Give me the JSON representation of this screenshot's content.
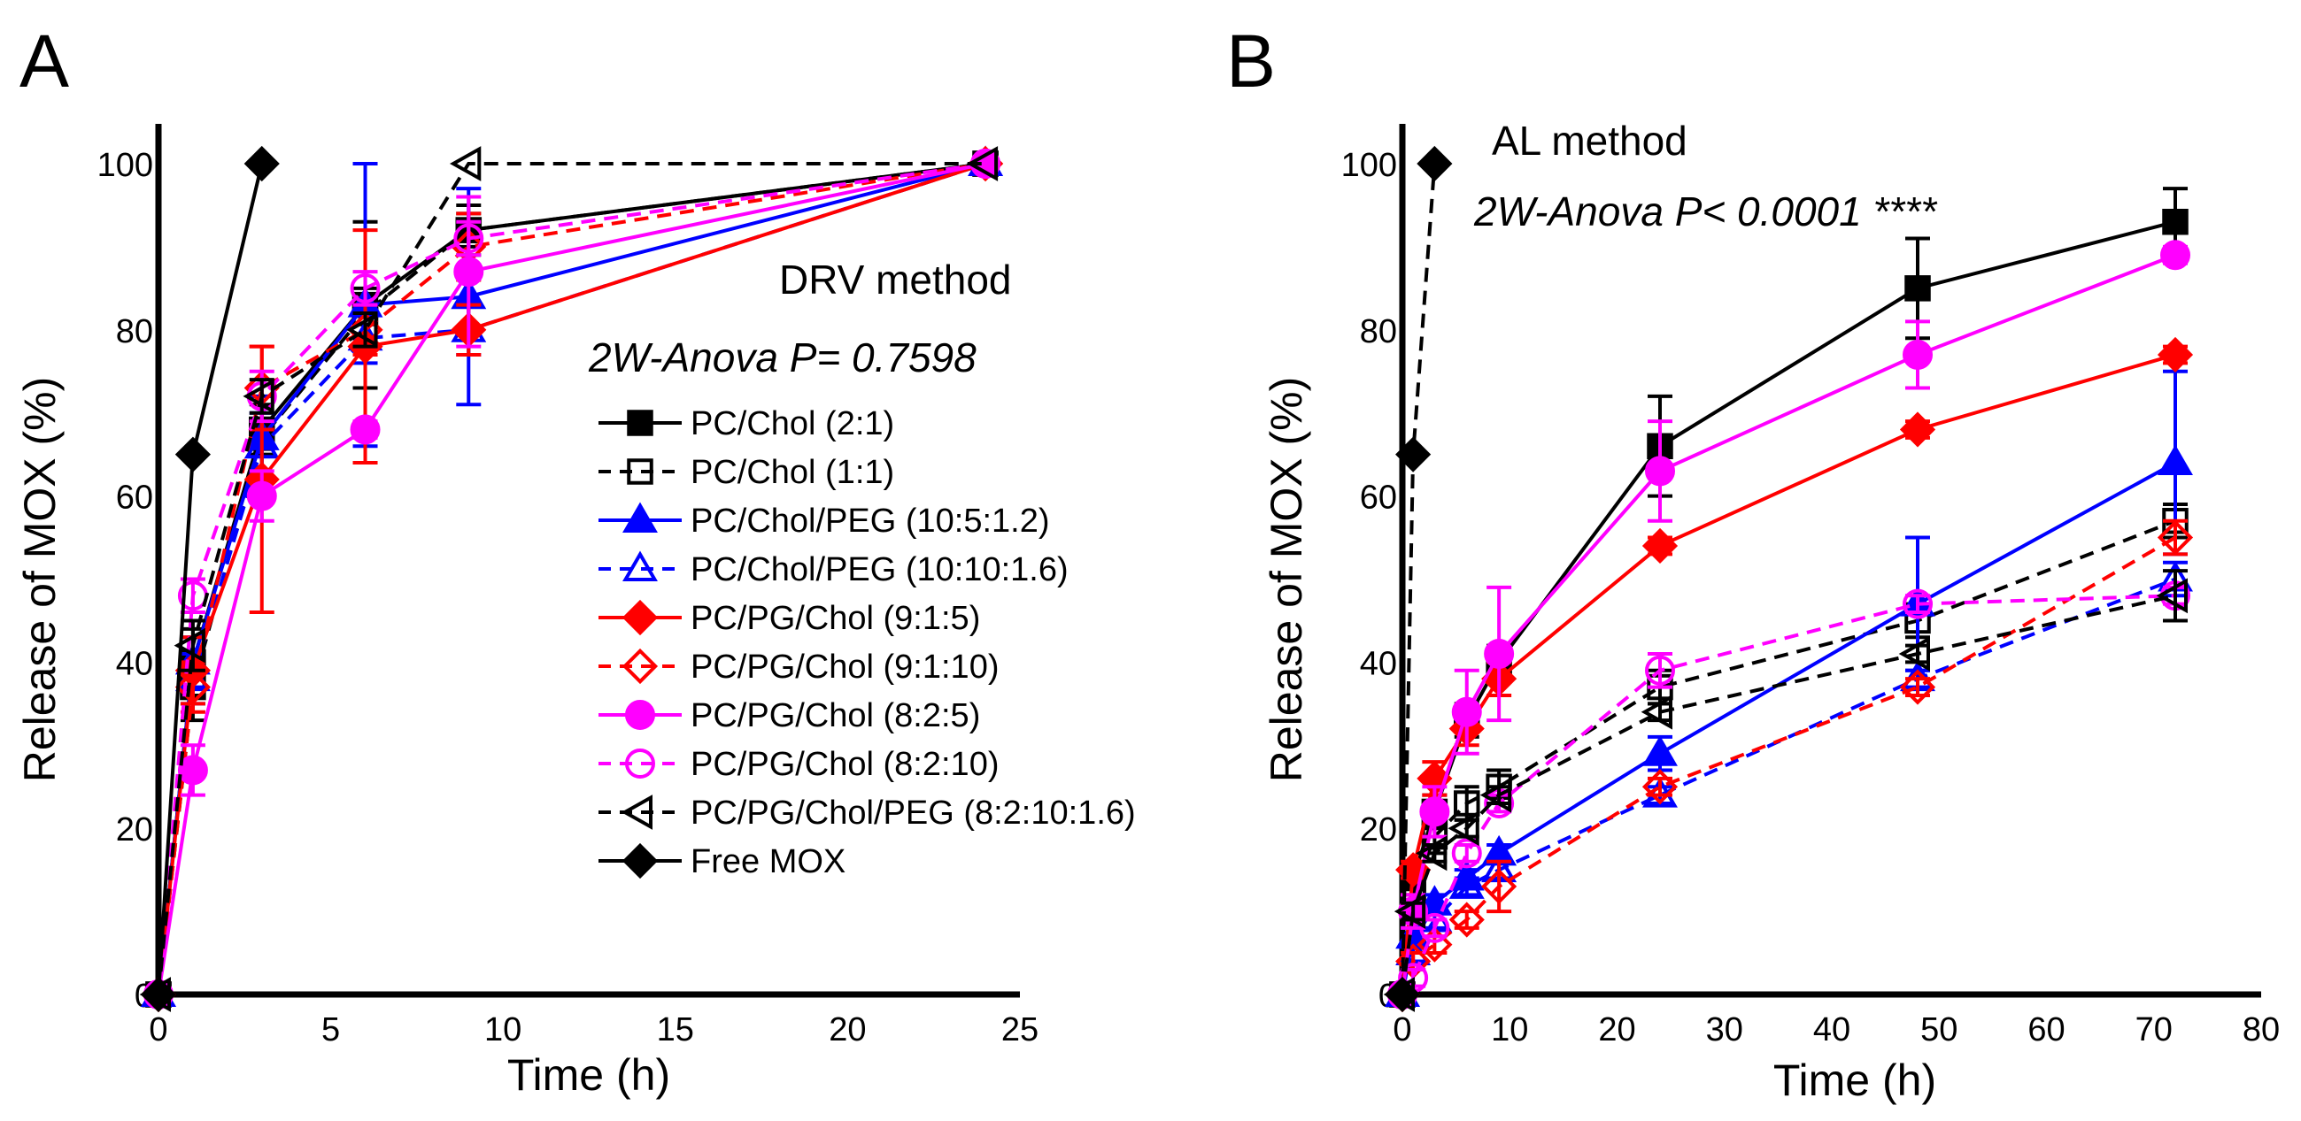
{
  "colors": {
    "black": "#000000",
    "blue": "#0000ff",
    "red": "#ff0000",
    "magenta": "#ff00ff"
  },
  "chart_data": [
    {
      "type": "line",
      "panel_label": "A",
      "title": "",
      "xlabel": "Time (h)",
      "ylabel": "Release of MOX (%)",
      "xlim": [
        0,
        25
      ],
      "ylim": [
        0,
        100
      ],
      "xticks": [
        0,
        5,
        10,
        15,
        20,
        25
      ],
      "yticks": [
        0,
        20,
        40,
        60,
        80,
        100
      ],
      "annotations": [
        "DRV method",
        "2W-Anova P= 0.7598"
      ],
      "legend_position": "center-right",
      "legend": [
        "PC/Chol (2:1)",
        "PC/Chol (1:1)",
        "PC/Chol/PEG (10:5:1.2)",
        "PC/Chol/PEG (10:10:1.6)",
        "PC/PG/Chol (9:1:5)",
        "PC/PG/Chol (9:1:10)",
        "PC/PG/Chol (8:2:5)",
        "PC/PG/Chol (8:2:10)",
        "PC/PG/Chol/PEG (8:2:10:1.6)",
        "Free MOX"
      ],
      "series": [
        {
          "name": "PC/Chol (2:1)",
          "color": "black",
          "dash": false,
          "marker": "square",
          "filled": true,
          "x": [
            0,
            1,
            3,
            6,
            9,
            24
          ],
          "y": [
            0,
            40,
            68,
            83,
            92,
            100
          ],
          "err": [
            0,
            4,
            3,
            10,
            3,
            0
          ]
        },
        {
          "name": "PC/Chol (1:1)",
          "color": "black",
          "dash": true,
          "marker": "square",
          "filled": false,
          "x": [
            0,
            1,
            3,
            6,
            9,
            24
          ],
          "y": [
            0,
            37,
            67,
            82,
            92,
            100
          ],
          "err": [
            0,
            4,
            5,
            3,
            2,
            0
          ]
        },
        {
          "name": "PC/Chol/PEG (10:5:1.2)",
          "color": "blue",
          "dash": false,
          "marker": "triangle",
          "filled": true,
          "x": [
            0,
            1,
            3,
            6,
            9,
            24
          ],
          "y": [
            0,
            40,
            67,
            83,
            84,
            100
          ],
          "err": [
            0,
            3,
            5,
            17,
            13,
            0
          ]
        },
        {
          "name": "PC/Chol/PEG (10:10:1.6)",
          "color": "blue",
          "dash": true,
          "marker": "triangle",
          "filled": false,
          "x": [
            0,
            1,
            3,
            6,
            9,
            24
          ],
          "y": [
            0,
            38,
            66,
            79,
            80,
            100
          ],
          "err": [
            0,
            3,
            4,
            3,
            3,
            0
          ]
        },
        {
          "name": "PC/PG/Chol (9:1:5)",
          "color": "red",
          "dash": false,
          "marker": "diamond",
          "filled": true,
          "x": [
            0,
            1,
            3,
            6,
            9,
            24
          ],
          "y": [
            0,
            39,
            62,
            78,
            80,
            100
          ],
          "err": [
            0,
            4,
            16,
            14,
            3,
            0
          ]
        },
        {
          "name": "PC/PG/Chol (9:1:10)",
          "color": "red",
          "dash": true,
          "marker": "diamond",
          "filled": false,
          "x": [
            0,
            1,
            3,
            6,
            9,
            24
          ],
          "y": [
            0,
            37,
            73,
            80,
            90,
            100
          ],
          "err": [
            0,
            3,
            5,
            3,
            4,
            0
          ]
        },
        {
          "name": "PC/PG/Chol (8:2:5)",
          "color": "magenta",
          "dash": false,
          "marker": "circle",
          "filled": true,
          "x": [
            0,
            1,
            3,
            6,
            9,
            24
          ],
          "y": [
            0,
            27,
            60,
            68,
            87,
            100
          ],
          "err": [
            0,
            3,
            3,
            1,
            9,
            0
          ]
        },
        {
          "name": "PC/PG/Chol (8:2:10)",
          "color": "magenta",
          "dash": true,
          "marker": "circle",
          "filled": false,
          "x": [
            0,
            1,
            3,
            6,
            9,
            24
          ],
          "y": [
            0,
            48,
            72,
            85,
            91,
            100
          ],
          "err": [
            0,
            2,
            3,
            2,
            2,
            0
          ]
        },
        {
          "name": "PC/PG/Chol/PEG (8:2:10:1.6)",
          "color": "black",
          "dash": true,
          "marker": "triangle-left",
          "filled": false,
          "x": [
            0,
            1,
            3,
            6,
            9,
            24
          ],
          "y": [
            0,
            42,
            72,
            80,
            100,
            100
          ],
          "err": [
            0,
            3,
            2,
            2,
            0,
            0
          ]
        },
        {
          "name": "Free MOX",
          "color": "black",
          "dash": false,
          "marker": "diamond",
          "filled": true,
          "x": [
            0,
            1,
            3
          ],
          "y": [
            0,
            65,
            100
          ],
          "err": [
            0,
            0,
            0
          ]
        }
      ]
    },
    {
      "type": "line",
      "panel_label": "B",
      "title": "",
      "xlabel": "Time (h)",
      "ylabel": "Release of MOX (%)",
      "xlim": [
        0,
        80
      ],
      "ylim": [
        0,
        100
      ],
      "xticks": [
        0,
        10,
        20,
        30,
        40,
        50,
        60,
        70,
        80
      ],
      "yticks": [
        0,
        20,
        40,
        60,
        80,
        100
      ],
      "annotations": [
        "AL method",
        "2W-Anova P< 0.0001  ****"
      ],
      "series": [
        {
          "name": "PC/Chol (2:1)",
          "color": "black",
          "dash": false,
          "marker": "square",
          "filled": true,
          "x": [
            0,
            1,
            3,
            6,
            9,
            24,
            48,
            72
          ],
          "y": [
            0,
            14,
            22,
            33,
            40,
            66,
            85,
            93
          ],
          "err": [
            0,
            2,
            2,
            2,
            2,
            6,
            6,
            4
          ]
        },
        {
          "name": "PC/Chol (1:1)",
          "color": "black",
          "dash": true,
          "marker": "square",
          "filled": false,
          "x": [
            0,
            1,
            3,
            6,
            9,
            24,
            48,
            72
          ],
          "y": [
            0,
            12,
            19,
            23,
            25,
            37,
            45,
            57
          ],
          "err": [
            0,
            1,
            2,
            2,
            2,
            2,
            2,
            2
          ]
        },
        {
          "name": "PC/Chol/PEG (10:5:1.2)",
          "color": "blue",
          "dash": false,
          "marker": "triangle",
          "filled": true,
          "x": [
            0,
            1,
            3,
            6,
            9,
            24,
            48,
            72
          ],
          "y": [
            0,
            7,
            11,
            14,
            17,
            29,
            47,
            64
          ],
          "err": [
            0,
            1,
            1,
            1,
            1,
            2,
            8,
            11
          ]
        },
        {
          "name": "PC/Chol/PEG (10:10:1.6)",
          "color": "blue",
          "dash": true,
          "marker": "triangle",
          "filled": false,
          "x": [
            0,
            1,
            3,
            6,
            9,
            24,
            48,
            72
          ],
          "y": [
            0,
            5,
            9,
            13,
            15,
            24,
            38,
            50
          ],
          "err": [
            0,
            1,
            1,
            1,
            1,
            1,
            1,
            2
          ]
        },
        {
          "name": "PC/PG/Chol (9:1:5)",
          "color": "red",
          "dash": false,
          "marker": "diamond",
          "filled": true,
          "x": [
            0,
            1,
            3,
            6,
            9,
            24,
            48,
            72
          ],
          "y": [
            0,
            15,
            26,
            32,
            38,
            54,
            68,
            77
          ],
          "err": [
            0,
            1,
            2,
            2,
            2,
            1,
            1,
            1
          ]
        },
        {
          "name": "PC/PG/Chol (9:1:10)",
          "color": "red",
          "dash": true,
          "marker": "diamond",
          "filled": false,
          "x": [
            0,
            1,
            3,
            6,
            9,
            24,
            48,
            72
          ],
          "y": [
            0,
            4,
            6,
            9,
            13,
            25,
            37,
            55
          ],
          "err": [
            0,
            1,
            1,
            1,
            3,
            1,
            1,
            2
          ]
        },
        {
          "name": "PC/PG/Chol (8:2:5)",
          "color": "magenta",
          "dash": false,
          "marker": "circle",
          "filled": true,
          "x": [
            0,
            1,
            3,
            6,
            9,
            24,
            48,
            72
          ],
          "y": [
            0,
            10,
            22,
            34,
            41,
            63,
            77,
            89
          ],
          "err": [
            0,
            2,
            3,
            5,
            8,
            6,
            4,
            1
          ]
        },
        {
          "name": "PC/PG/Chol (8:2:10)",
          "color": "magenta",
          "dash": true,
          "marker": "circle",
          "filled": false,
          "x": [
            0,
            1,
            3,
            6,
            9,
            24,
            48,
            72
          ],
          "y": [
            0,
            2,
            8,
            17,
            23,
            39,
            47,
            48
          ],
          "err": [
            0,
            1,
            1,
            1,
            1,
            2,
            1,
            1
          ]
        },
        {
          "name": "PC/PG/Chol/PEG (8:2:10:1.6)",
          "color": "black",
          "dash": true,
          "marker": "triangle-left",
          "filled": false,
          "x": [
            0,
            1,
            3,
            6,
            9,
            24,
            48,
            72
          ],
          "y": [
            0,
            10,
            17,
            20,
            24,
            34,
            41,
            48
          ],
          "err": [
            0,
            1,
            1,
            1,
            1,
            1,
            1,
            3
          ]
        },
        {
          "name": "Free MOX",
          "color": "black",
          "dash": true,
          "marker": "diamond",
          "filled": true,
          "x": [
            0,
            1,
            3
          ],
          "y": [
            0,
            65,
            100
          ],
          "err": [
            0,
            0,
            0
          ]
        }
      ]
    }
  ]
}
